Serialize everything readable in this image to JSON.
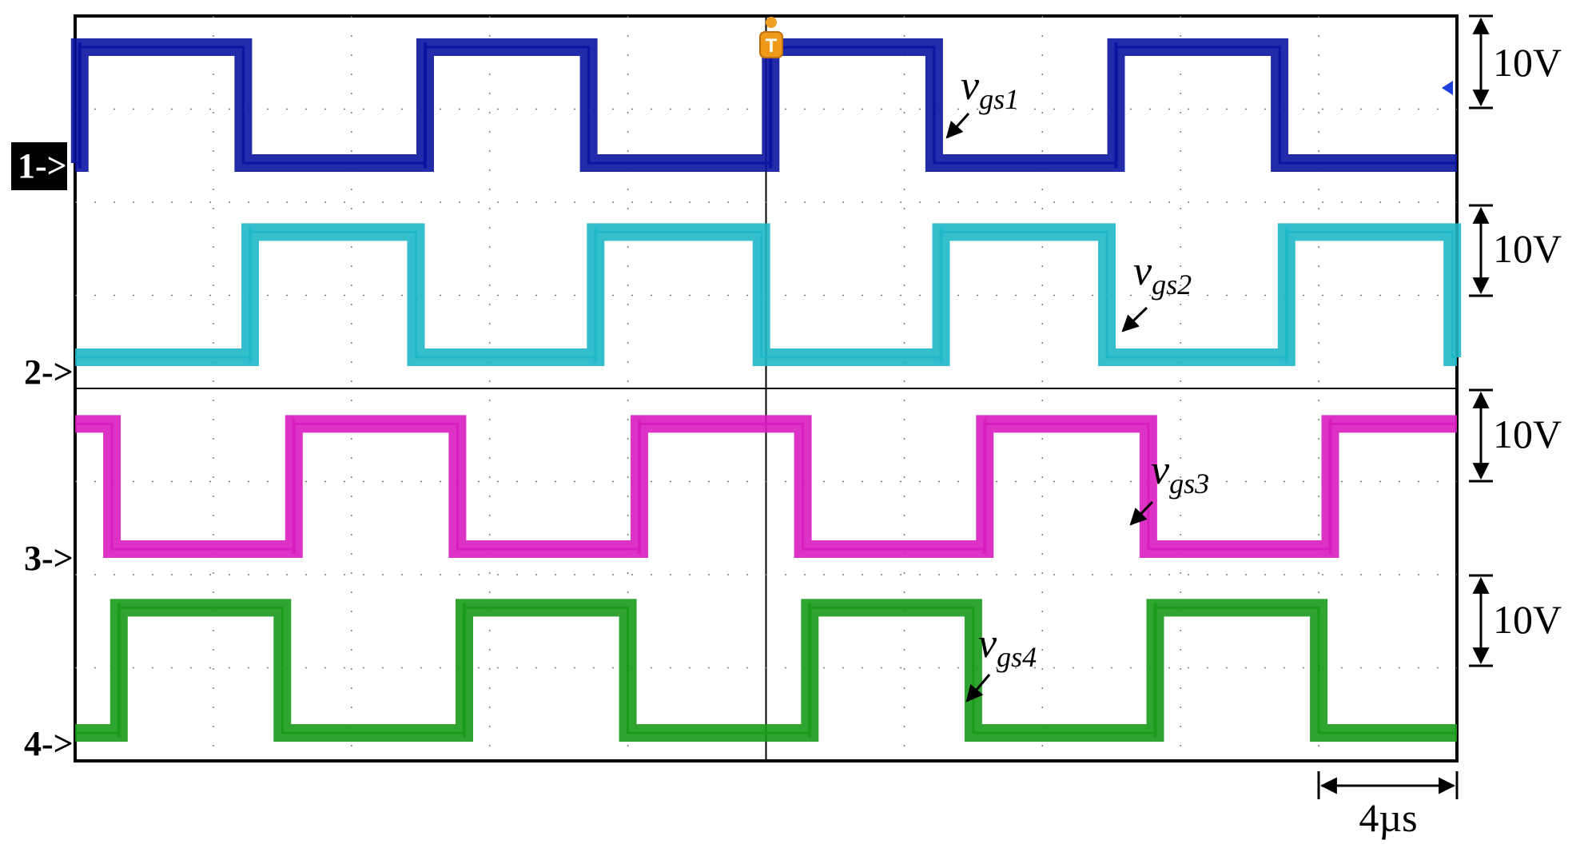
{
  "chart_data": {
    "type": "line",
    "title": "",
    "xlabel": "",
    "ylabel": "",
    "x_unit": "µs",
    "time_scale_label": "4µs",
    "x_range_us": [
      0,
      60
    ],
    "trigger_marker": "T",
    "grid": true,
    "series": [
      {
        "id": "ch1",
        "name": "vgs1",
        "label_main": "v",
        "label_sub": "gs1",
        "marker": "1->",
        "scale_label": "10V",
        "color": "#0a14a0",
        "high_v": 12.5,
        "low_v": 0,
        "high_intervals_us": [
          [
            0.2,
            7.3
          ],
          [
            15.2,
            22.3
          ],
          [
            30.2,
            37.3
          ],
          [
            45.2,
            52.3
          ]
        ]
      },
      {
        "id": "ch2",
        "name": "vgs2",
        "label_main": "v",
        "label_sub": "gs2",
        "marker": "2->",
        "scale_label": "10V",
        "color": "#1fb8c8",
        "high_v": 13.5,
        "low_v": 0,
        "high_intervals_us": [
          [
            7.6,
            14.8
          ],
          [
            22.6,
            29.8
          ],
          [
            37.6,
            44.8
          ],
          [
            52.6,
            59.8
          ]
        ]
      },
      {
        "id": "ch3",
        "name": "vgs3",
        "label_main": "v",
        "label_sub": "gs3",
        "marker": "3->",
        "scale_label": "10V",
        "color": "#d81cc0",
        "high_v": 13.5,
        "low_v": 0,
        "high_intervals_us": [
          [
            0,
            1.6
          ],
          [
            9.5,
            16.6
          ],
          [
            24.5,
            31.6
          ],
          [
            39.5,
            46.6
          ],
          [
            54.5,
            60
          ]
        ]
      },
      {
        "id": "ch4",
        "name": "vgs4",
        "label_main": "v",
        "label_sub": "gs4",
        "marker": "4->",
        "scale_label": "10V",
        "color": "#1a9a1a",
        "high_v": 13.5,
        "low_v": 0,
        "high_intervals_us": [
          [
            1.9,
            9.0
          ],
          [
            16.9,
            24.0
          ],
          [
            31.9,
            39.0
          ],
          [
            46.9,
            54.0
          ]
        ]
      }
    ]
  }
}
